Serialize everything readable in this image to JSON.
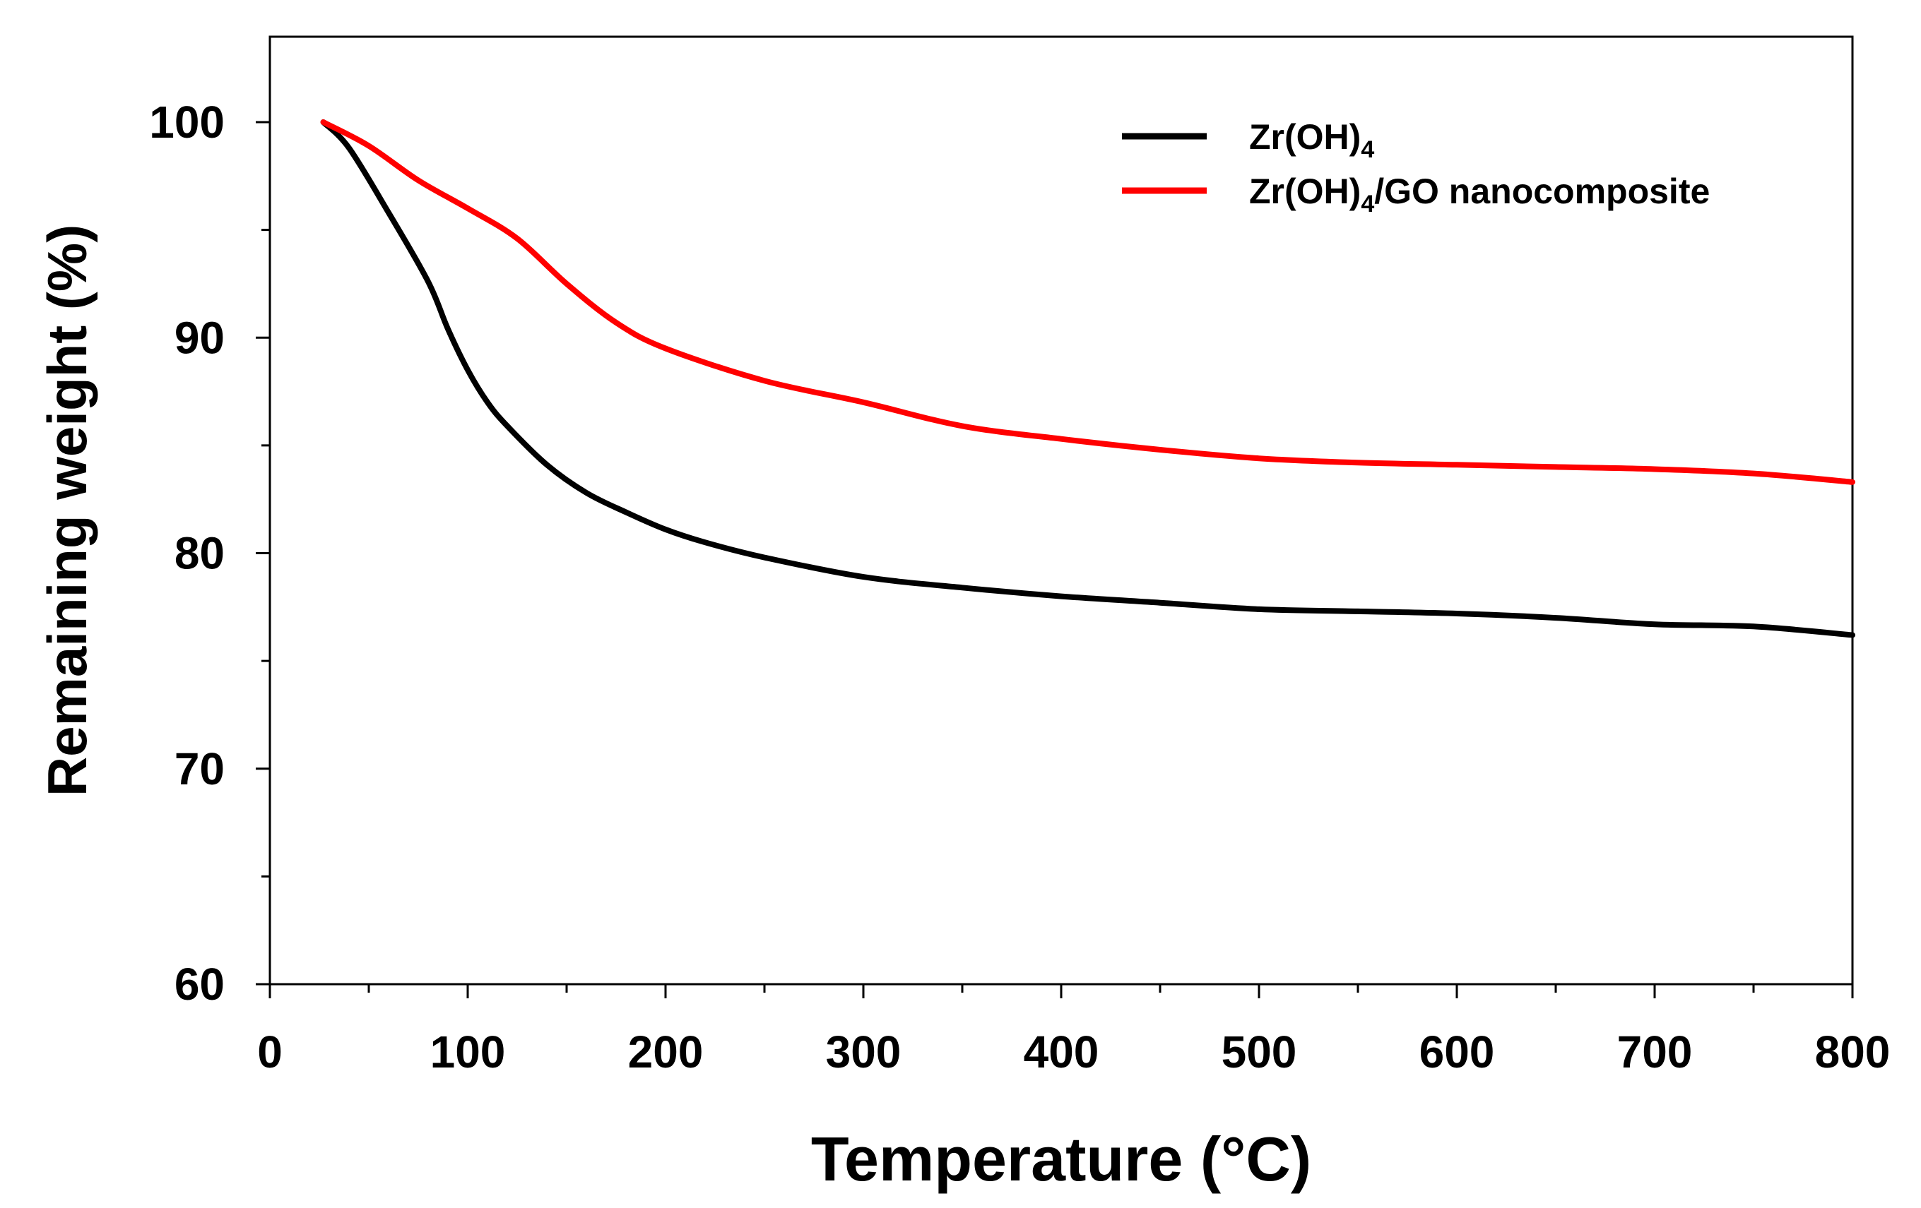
{
  "chart_data": {
    "type": "line",
    "title": "",
    "xlabel": "Temperature (°C)",
    "ylabel": "Remaining weight (%)",
    "xlim": [
      0,
      800
    ],
    "ylim": [
      60,
      104
    ],
    "x_ticks": [
      0,
      100,
      200,
      300,
      400,
      500,
      600,
      700,
      800
    ],
    "x_tick_labels": [
      "0",
      "100",
      "200",
      "300",
      "400",
      "500",
      "600",
      "700",
      "800"
    ],
    "x_minor_step": 50,
    "y_ticks": [
      60,
      70,
      80,
      90,
      100
    ],
    "y_tick_labels": [
      "60",
      "70",
      "80",
      "90",
      "100"
    ],
    "y_minor_step": 5,
    "grid": false,
    "legend_position": "top-right",
    "series": [
      {
        "name": "Zr(OH)4",
        "label_main": "Zr(OH)",
        "label_sub": "4",
        "label_rest": "",
        "color": "#000000",
        "x": [
          27,
          40,
          60,
          80,
          90,
          100,
          110,
          120,
          140,
          160,
          180,
          200,
          220,
          250,
          300,
          350,
          400,
          450,
          500,
          550,
          600,
          650,
          700,
          750,
          800
        ],
        "y": [
          100,
          98.8,
          95.8,
          92.6,
          90.4,
          88.5,
          87.0,
          85.9,
          84.1,
          82.8,
          81.9,
          81.1,
          80.5,
          79.8,
          78.9,
          78.4,
          78.0,
          77.7,
          77.4,
          77.3,
          77.2,
          77.0,
          76.7,
          76.6,
          76.2
        ]
      },
      {
        "name": "Zr(OH)4/GO nanocomposite",
        "label_main": "Zr(OH)",
        "label_sub": "4",
        "label_rest": "/GO nanocomposite",
        "color": "#ff0000",
        "x": [
          27,
          50,
          75,
          100,
          125,
          150,
          175,
          200,
          250,
          300,
          350,
          400,
          450,
          500,
          550,
          600,
          650,
          700,
          750,
          800
        ],
        "y": [
          100,
          98.9,
          97.3,
          96.0,
          94.6,
          92.5,
          90.7,
          89.5,
          88.0,
          87.0,
          85.9,
          85.3,
          84.8,
          84.4,
          84.2,
          84.1,
          84.0,
          83.9,
          83.7,
          83.3
        ]
      }
    ]
  }
}
